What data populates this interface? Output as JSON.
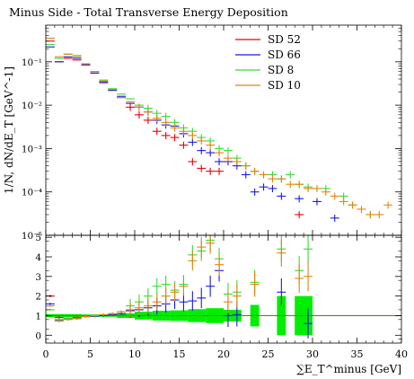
{
  "chart_data": [
    {
      "type": "scatter",
      "panel": "main",
      "title": "Minus Side - Total Transverse Energy Deposition",
      "ylabel": "1/N, dN/dE_T [GeV^-1]",
      "yscale": "log",
      "ylim": [
        1e-05,
        0.7
      ],
      "xlim": [
        0,
        40
      ],
      "x_ticks": [
        0,
        5,
        10,
        15,
        20,
        25,
        30,
        35,
        40
      ],
      "y_ticks": [
        {
          "value": 0.1,
          "label": "10⁻¹"
        },
        {
          "value": 0.01,
          "label": "10⁻²"
        },
        {
          "value": 0.001,
          "label": "10⁻³"
        },
        {
          "value": 0.0001,
          "label": "10⁻⁴"
        },
        {
          "value": 1e-05,
          "label": "10⁻⁵"
        }
      ],
      "legend_position": "top-right",
      "x_bins": [
        0.5,
        1.5,
        2.5,
        3.5,
        4.5,
        5.5,
        6.5,
        7.5,
        8.5,
        9.5,
        10.5,
        11.5,
        12.5,
        13.5,
        14.5,
        15.5,
        16.5,
        17.5,
        18.5,
        19.5,
        20.5,
        21.5,
        22.5,
        23.5,
        24.5,
        25.5,
        26.5,
        27.5,
        28.5,
        29.5,
        30.5,
        31.5,
        32.5,
        33.5,
        34.5,
        35.5,
        36.5,
        37.5,
        38.5
      ],
      "series": [
        {
          "name": "SD 52",
          "color": "#e8000b",
          "values": [
            0.3,
            0.1,
            0.12,
            0.11,
            0.085,
            0.055,
            0.035,
            0.022,
            0.015,
            0.009,
            0.006,
            0.0045,
            0.0025,
            0.002,
            0.0018,
            0.0012,
            0.0005,
            0.00035,
            0.0003,
            0.0003,
            null,
            null,
            null,
            null,
            null,
            null,
            null,
            null,
            3e-05,
            null,
            null,
            null,
            null,
            null,
            null,
            null,
            null,
            null,
            null
          ]
        },
        {
          "name": "SD 66",
          "color": "#1a1ae6",
          "values": [
            0.22,
            0.1,
            0.13,
            0.12,
            0.085,
            0.055,
            0.033,
            0.022,
            0.016,
            0.011,
            0.009,
            0.007,
            0.0045,
            0.0035,
            0.0033,
            0.0022,
            0.0014,
            0.0009,
            0.0008,
            0.0005,
            0.0005,
            0.0004,
            0.00025,
            0.0001,
            0.00013,
            0.00012,
            8e-05,
            null,
            7e-05,
            null,
            6e-05,
            null,
            2.5e-05,
            null,
            null,
            null,
            null,
            null,
            null
          ]
        },
        {
          "name": "SD 8",
          "color": "#33dd33",
          "values": [
            0.25,
            0.12,
            0.15,
            0.14,
            0.09,
            0.06,
            0.038,
            0.024,
            0.018,
            0.014,
            0.01,
            0.0085,
            0.0065,
            0.0055,
            0.004,
            0.003,
            0.0025,
            0.0018,
            0.0015,
            0.001,
            0.0009,
            0.0006,
            0.0004,
            0.0003,
            null,
            0.00025,
            0.0002,
            0.00025,
            0.00015,
            0.00013,
            null,
            0.00012,
            null,
            8e-05,
            5e-05,
            null,
            3e-05,
            null,
            null
          ]
        },
        {
          "name": "SD 10",
          "color": "#e0850b",
          "values": [
            0.35,
            0.13,
            0.15,
            0.13,
            0.09,
            0.06,
            0.036,
            0.023,
            0.015,
            0.012,
            0.009,
            0.007,
            0.005,
            0.004,
            0.003,
            0.0025,
            0.002,
            0.0015,
            0.0012,
            0.0008,
            0.0006,
            0.0005,
            0.0004,
            0.0003,
            0.00025,
            0.0002,
            0.0002,
            0.00015,
            0.00015,
            0.00012,
            0.00012,
            0.0001,
            8e-05,
            6e-05,
            5e-05,
            4e-05,
            3e-05,
            3e-05,
            5e-05
          ]
        }
      ]
    },
    {
      "type": "scatter",
      "panel": "ratio",
      "xlabel": "∑E_T^minus [GeV]",
      "ylim": [
        -0.4,
        5.1
      ],
      "xlim": [
        0,
        40
      ],
      "x_ticks": [
        0,
        5,
        10,
        15,
        20,
        25,
        30,
        35,
        40
      ],
      "y_ticks": [
        0,
        1,
        2,
        3,
        4,
        5
      ],
      "reference_line": 1.0,
      "reference_color": "#7a7a00",
      "band_color": "#00ee00",
      "band": [
        {
          "x": [
            0,
            4
          ],
          "halfwidth": 0.08
        },
        {
          "x": [
            4,
            8
          ],
          "halfwidth": 0.06
        },
        {
          "x": [
            8,
            10
          ],
          "halfwidth": 0.12
        },
        {
          "x": [
            10,
            12
          ],
          "halfwidth": 0.2
        },
        {
          "x": [
            12,
            14
          ],
          "halfwidth": 0.25
        },
        {
          "x": [
            14,
            16
          ],
          "halfwidth": 0.27
        },
        {
          "x": [
            16,
            18
          ],
          "halfwidth": 0.33
        },
        {
          "x": [
            18,
            20
          ],
          "halfwidth": 0.38
        },
        {
          "x": [
            20,
            22
          ],
          "halfwidth": 0.3
        },
        {
          "x": [
            23,
            24
          ],
          "halfwidth": 0.55
        },
        {
          "x": [
            26,
            27
          ],
          "halfwidth": 1.0
        },
        {
          "x": [
            28,
            30
          ],
          "halfwidth": 1.0
        }
      ],
      "series": [
        {
          "name": "SD 52",
          "color": "#e8000b",
          "points": [
            [
              0.5,
              2.0
            ],
            [
              1.5,
              0.9
            ],
            [
              2.5,
              0.85
            ],
            [
              3.5,
              0.9
            ]
          ]
        },
        {
          "name": "SD 66",
          "color": "#1a1ae6",
          "points": [
            [
              0.5,
              1.6
            ],
            [
              1.5,
              0.78
            ],
            [
              2.5,
              0.85
            ],
            [
              3.5,
              0.85
            ],
            [
              4.5,
              0.95
            ],
            [
              5.5,
              0.97
            ],
            [
              6.5,
              1.0
            ],
            [
              7.5,
              1.05
            ],
            [
              8.5,
              1.1
            ],
            [
              9.5,
              1.25
            ],
            [
              10.5,
              1.3
            ],
            [
              11.5,
              1.4
            ],
            [
              12.5,
              1.5
            ],
            [
              13.5,
              1.6
            ],
            [
              14.5,
              1.8
            ],
            [
              15.5,
              1.7
            ],
            [
              16.5,
              1.75
            ],
            [
              17.5,
              1.9
            ],
            [
              18.5,
              2.5
            ],
            [
              19.5,
              3.3
            ],
            [
              20.5,
              1.0
            ],
            [
              21.5,
              1.05
            ],
            [
              26.5,
              2.2
            ],
            [
              29.5,
              0.6
            ]
          ]
        },
        {
          "name": "SD 8",
          "color": "#33dd33",
          "points": [
            [
              0.5,
              1.3
            ],
            [
              1.5,
              0.8
            ],
            [
              2.5,
              0.85
            ],
            [
              3.5,
              0.85
            ],
            [
              4.5,
              0.95
            ],
            [
              5.5,
              1.0
            ],
            [
              6.5,
              1.05
            ],
            [
              7.5,
              1.1
            ],
            [
              8.5,
              1.2
            ],
            [
              9.5,
              1.5
            ],
            [
              10.5,
              1.7
            ],
            [
              11.5,
              2.0
            ],
            [
              12.5,
              2.5
            ],
            [
              13.5,
              2.6
            ],
            [
              14.5,
              2.3
            ],
            [
              15.5,
              2.6
            ],
            [
              16.5,
              4.1
            ],
            [
              17.5,
              4.3
            ],
            [
              18.5,
              4.85
            ],
            [
              19.5,
              3.9
            ],
            [
              20.5,
              2.1
            ],
            [
              21.5,
              2.2
            ],
            [
              23.5,
              2.7
            ],
            [
              26.5,
              4.4
            ],
            [
              28.5,
              3.3
            ],
            [
              29.5,
              4.4
            ]
          ]
        },
        {
          "name": "SD 10",
          "color": "#e0850b",
          "points": [
            [
              0.5,
              1.5
            ],
            [
              1.5,
              0.72
            ],
            [
              2.5,
              0.8
            ],
            [
              3.5,
              0.85
            ],
            [
              4.5,
              0.95
            ],
            [
              5.5,
              1.0
            ],
            [
              6.5,
              1.05
            ],
            [
              7.5,
              1.1
            ],
            [
              8.5,
              1.2
            ],
            [
              9.5,
              1.3
            ],
            [
              10.5,
              1.4
            ],
            [
              11.5,
              1.5
            ],
            [
              12.5,
              1.7
            ],
            [
              13.5,
              2.0
            ],
            [
              14.5,
              2.2
            ],
            [
              15.5,
              2.5
            ],
            [
              16.5,
              3.8
            ],
            [
              17.5,
              4.5
            ],
            [
              18.5,
              4.7
            ],
            [
              19.5,
              3.6
            ],
            [
              20.5,
              1.7
            ],
            [
              21.5,
              2.0
            ],
            [
              23.5,
              2.6
            ],
            [
              26.5,
              4.2
            ],
            [
              28.5,
              2.9
            ],
            [
              29.5,
              3.0
            ]
          ]
        }
      ]
    }
  ]
}
